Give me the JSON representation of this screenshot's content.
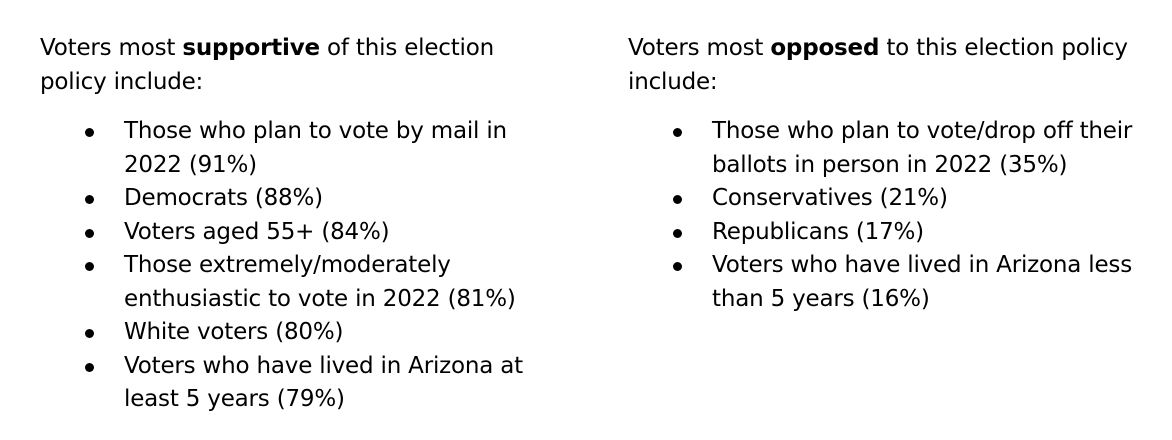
{
  "supportive": {
    "intro_before": "Voters most ",
    "intro_bold": "supportive",
    "intro_after": " of this election policy include:",
    "items": [
      "Those who plan to vote by mail in 2022 (91%)",
      "Democrats (88%)",
      "Voters aged 55+ (84%)",
      "Those extremely/moderately enthusiastic to vote in 2022 (81%)",
      "White voters (80%)",
      "Voters who have lived in Arizona at least 5 years (79%)"
    ]
  },
  "opposed": {
    "intro_before": "Voters most ",
    "intro_bold": "opposed",
    "intro_after": " to this election policy include:",
    "items": [
      "Those who plan to vote/drop off their ballots in person in 2022 (35%)",
      "Conservatives (21%)",
      "Republicans (17%)",
      "Voters who have lived in Arizona less than 5 years (16%)"
    ]
  }
}
